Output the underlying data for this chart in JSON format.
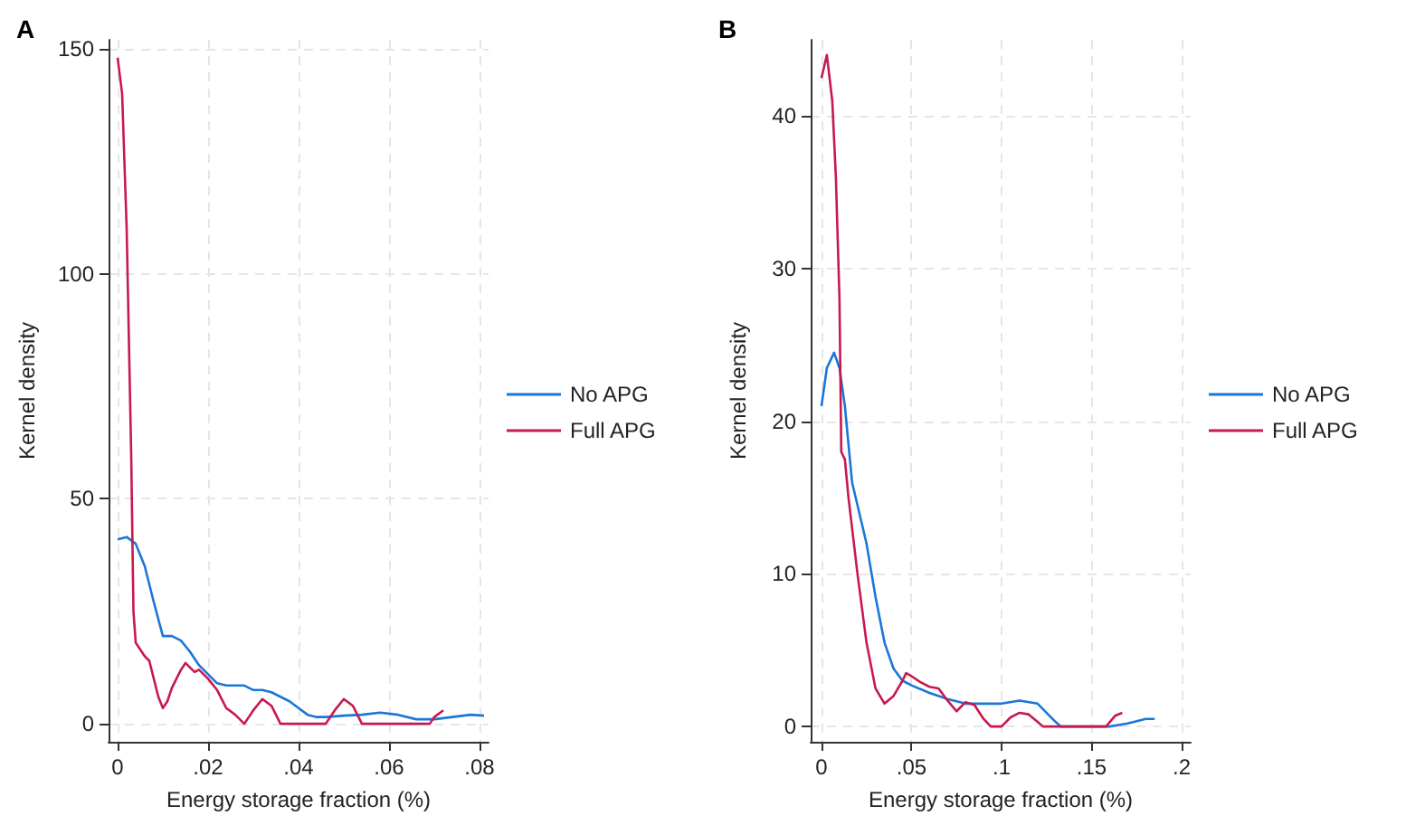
{
  "chart_data": [
    {
      "type": "line",
      "title": "A",
      "xlabel": "Energy storage fraction (%)",
      "ylabel": "Kernel density",
      "xlim": [
        -0.002,
        0.082
      ],
      "ylim": [
        -4,
        152
      ],
      "xticks": [
        0,
        {
          "value": 0.02,
          "label": ".02"
        },
        {
          "value": 0.04,
          "label": ".04"
        },
        {
          "value": 0.06,
          "label": ".06"
        },
        {
          "value": 0.08,
          "label": ".08"
        }
      ],
      "yticks": [
        0,
        50,
        100,
        150
      ],
      "grid": true,
      "legend": "right",
      "marker": "none",
      "series": [
        {
          "name": "No APG",
          "color": "#1a76d8",
          "x": [
            0,
            0.002,
            0.004,
            0.006,
            0.008,
            0.01,
            0.012,
            0.014,
            0.016,
            0.018,
            0.02,
            0.022,
            0.024,
            0.026,
            0.028,
            0.03,
            0.032,
            0.034,
            0.036,
            0.038,
            0.04,
            0.042,
            0.044,
            0.046,
            0.05,
            0.054,
            0.058,
            0.062,
            0.066,
            0.07,
            0.074,
            0.078,
            0.081
          ],
          "values": [
            41,
            41.5,
            40,
            35,
            27,
            19.5,
            19.5,
            18.5,
            16,
            13,
            11,
            9,
            8.5,
            8.5,
            8.5,
            7.5,
            7.5,
            7,
            6,
            5,
            3.5,
            2,
            1.5,
            1.5,
            1.8,
            2,
            2.5,
            2,
            1,
            1,
            1.5,
            2,
            1.8
          ]
        },
        {
          "name": "Full APG",
          "color": "#c8194e",
          "x": [
            0,
            0.001,
            0.002,
            0.003,
            0.0035,
            0.004,
            0.006,
            0.007,
            0.008,
            0.009,
            0.01,
            0.011,
            0.012,
            0.014,
            0.015,
            0.016,
            0.017,
            0.018,
            0.02,
            0.022,
            0.024,
            0.026,
            0.028,
            0.03,
            0.032,
            0.034,
            0.036,
            0.046,
            0.048,
            0.05,
            0.052,
            0.054,
            0.069,
            0.07,
            0.072
          ],
          "values": [
            148,
            140,
            110,
            60,
            25,
            18,
            15,
            14,
            10,
            6,
            3.5,
            5,
            8,
            12,
            13.5,
            12.5,
            11.5,
            12,
            10,
            7.5,
            3.5,
            2,
            0,
            3,
            5.5,
            4,
            0,
            0,
            3,
            5.5,
            4,
            0,
            0,
            1.5,
            3
          ]
        }
      ]
    },
    {
      "type": "line",
      "title": "B",
      "xlabel": "Energy storage fraction (%)",
      "ylabel": "Kernel density",
      "xlim": [
        -0.006,
        0.205
      ],
      "ylim": [
        -1,
        45
      ],
      "xticks": [
        0,
        {
          "value": 0.05,
          "label": ".05"
        },
        {
          "value": 0.1,
          "label": ".1"
        },
        {
          "value": 0.15,
          "label": ".15"
        },
        {
          "value": 0.2,
          "label": ".2"
        }
      ],
      "yticks": [
        0,
        10,
        20,
        30,
        40
      ],
      "grid": true,
      "legend": "right",
      "marker": "none",
      "series": [
        {
          "name": "No APG",
          "color": "#1a76d8",
          "x": [
            0,
            0.003,
            0.007,
            0.01,
            0.013,
            0.017,
            0.02,
            0.025,
            0.03,
            0.035,
            0.04,
            0.045,
            0.05,
            0.06,
            0.07,
            0.08,
            0.09,
            0.1,
            0.11,
            0.12,
            0.13,
            0.133,
            0.16,
            0.17,
            0.18,
            0.185
          ],
          "values": [
            21,
            23.5,
            24.5,
            23.5,
            21,
            16,
            14.5,
            12,
            8.5,
            5.5,
            3.8,
            3,
            2.7,
            2.2,
            1.8,
            1.5,
            1.5,
            1.5,
            1.7,
            1.5,
            0.3,
            0,
            0,
            0.2,
            0.5,
            0.5
          ]
        },
        {
          "name": "Full APG",
          "color": "#c8194e",
          "x": [
            0,
            0.003,
            0.006,
            0.008,
            0.01,
            0.011,
            0.013,
            0.015,
            0.02,
            0.025,
            0.03,
            0.035,
            0.04,
            0.045,
            0.047,
            0.05,
            0.055,
            0.06,
            0.065,
            0.07,
            0.075,
            0.08,
            0.085,
            0.09,
            0.094,
            0.1,
            0.105,
            0.11,
            0.115,
            0.12,
            0.123,
            0.158,
            0.163,
            0.167
          ],
          "values": [
            42.5,
            44,
            41,
            36,
            28,
            18,
            17.5,
            15,
            10,
            5.5,
            2.5,
            1.5,
            2,
            3,
            3.5,
            3.3,
            2.9,
            2.6,
            2.5,
            1.7,
            1,
            1.6,
            1.4,
            0.5,
            0,
            0,
            0.6,
            0.9,
            0.8,
            0.3,
            0,
            0,
            0.7,
            0.9
          ]
        }
      ]
    }
  ]
}
